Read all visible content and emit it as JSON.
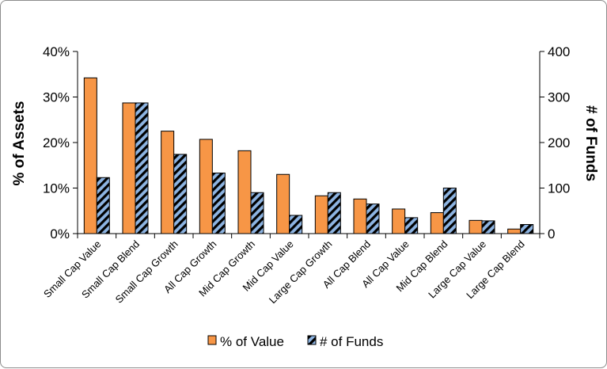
{
  "chart_data": {
    "type": "bar",
    "categories": [
      "Small Cap Value",
      "Small Cap Blend",
      "Small Cap Growth",
      "All Cap Growth",
      "Mid Cap Growth",
      "Mid Cap Value",
      "Large Cap Growth",
      "All Cap Blend",
      "All Cap Value",
      "Mid Cap Blend",
      "Large Cap Value",
      "Large Cap Blend"
    ],
    "series": [
      {
        "name": "% of Value",
        "axis": "left",
        "color": "#f79646",
        "values": [
          34.2,
          28.7,
          22.5,
          20.7,
          18.2,
          13.0,
          8.3,
          7.6,
          5.4,
          4.6,
          2.9,
          1.0
        ]
      },
      {
        "name": "# of Funds",
        "axis": "right",
        "color": "#8db4e2",
        "pattern": "black diagonal stripes",
        "values": [
          123,
          287,
          174,
          133,
          90,
          40,
          90,
          65,
          35,
          100,
          28,
          20
        ]
      }
    ],
    "ylabel": "% of Assets",
    "y2label": "# of Funds",
    "ylim": [
      0,
      40
    ],
    "y2lim": [
      0,
      400
    ],
    "yticks": [
      "0%",
      "10%",
      "20%",
      "30%",
      "40%"
    ],
    "y2ticks": [
      "0",
      "100",
      "200",
      "300",
      "400"
    ],
    "legend_position": "bottom",
    "grid": false
  }
}
